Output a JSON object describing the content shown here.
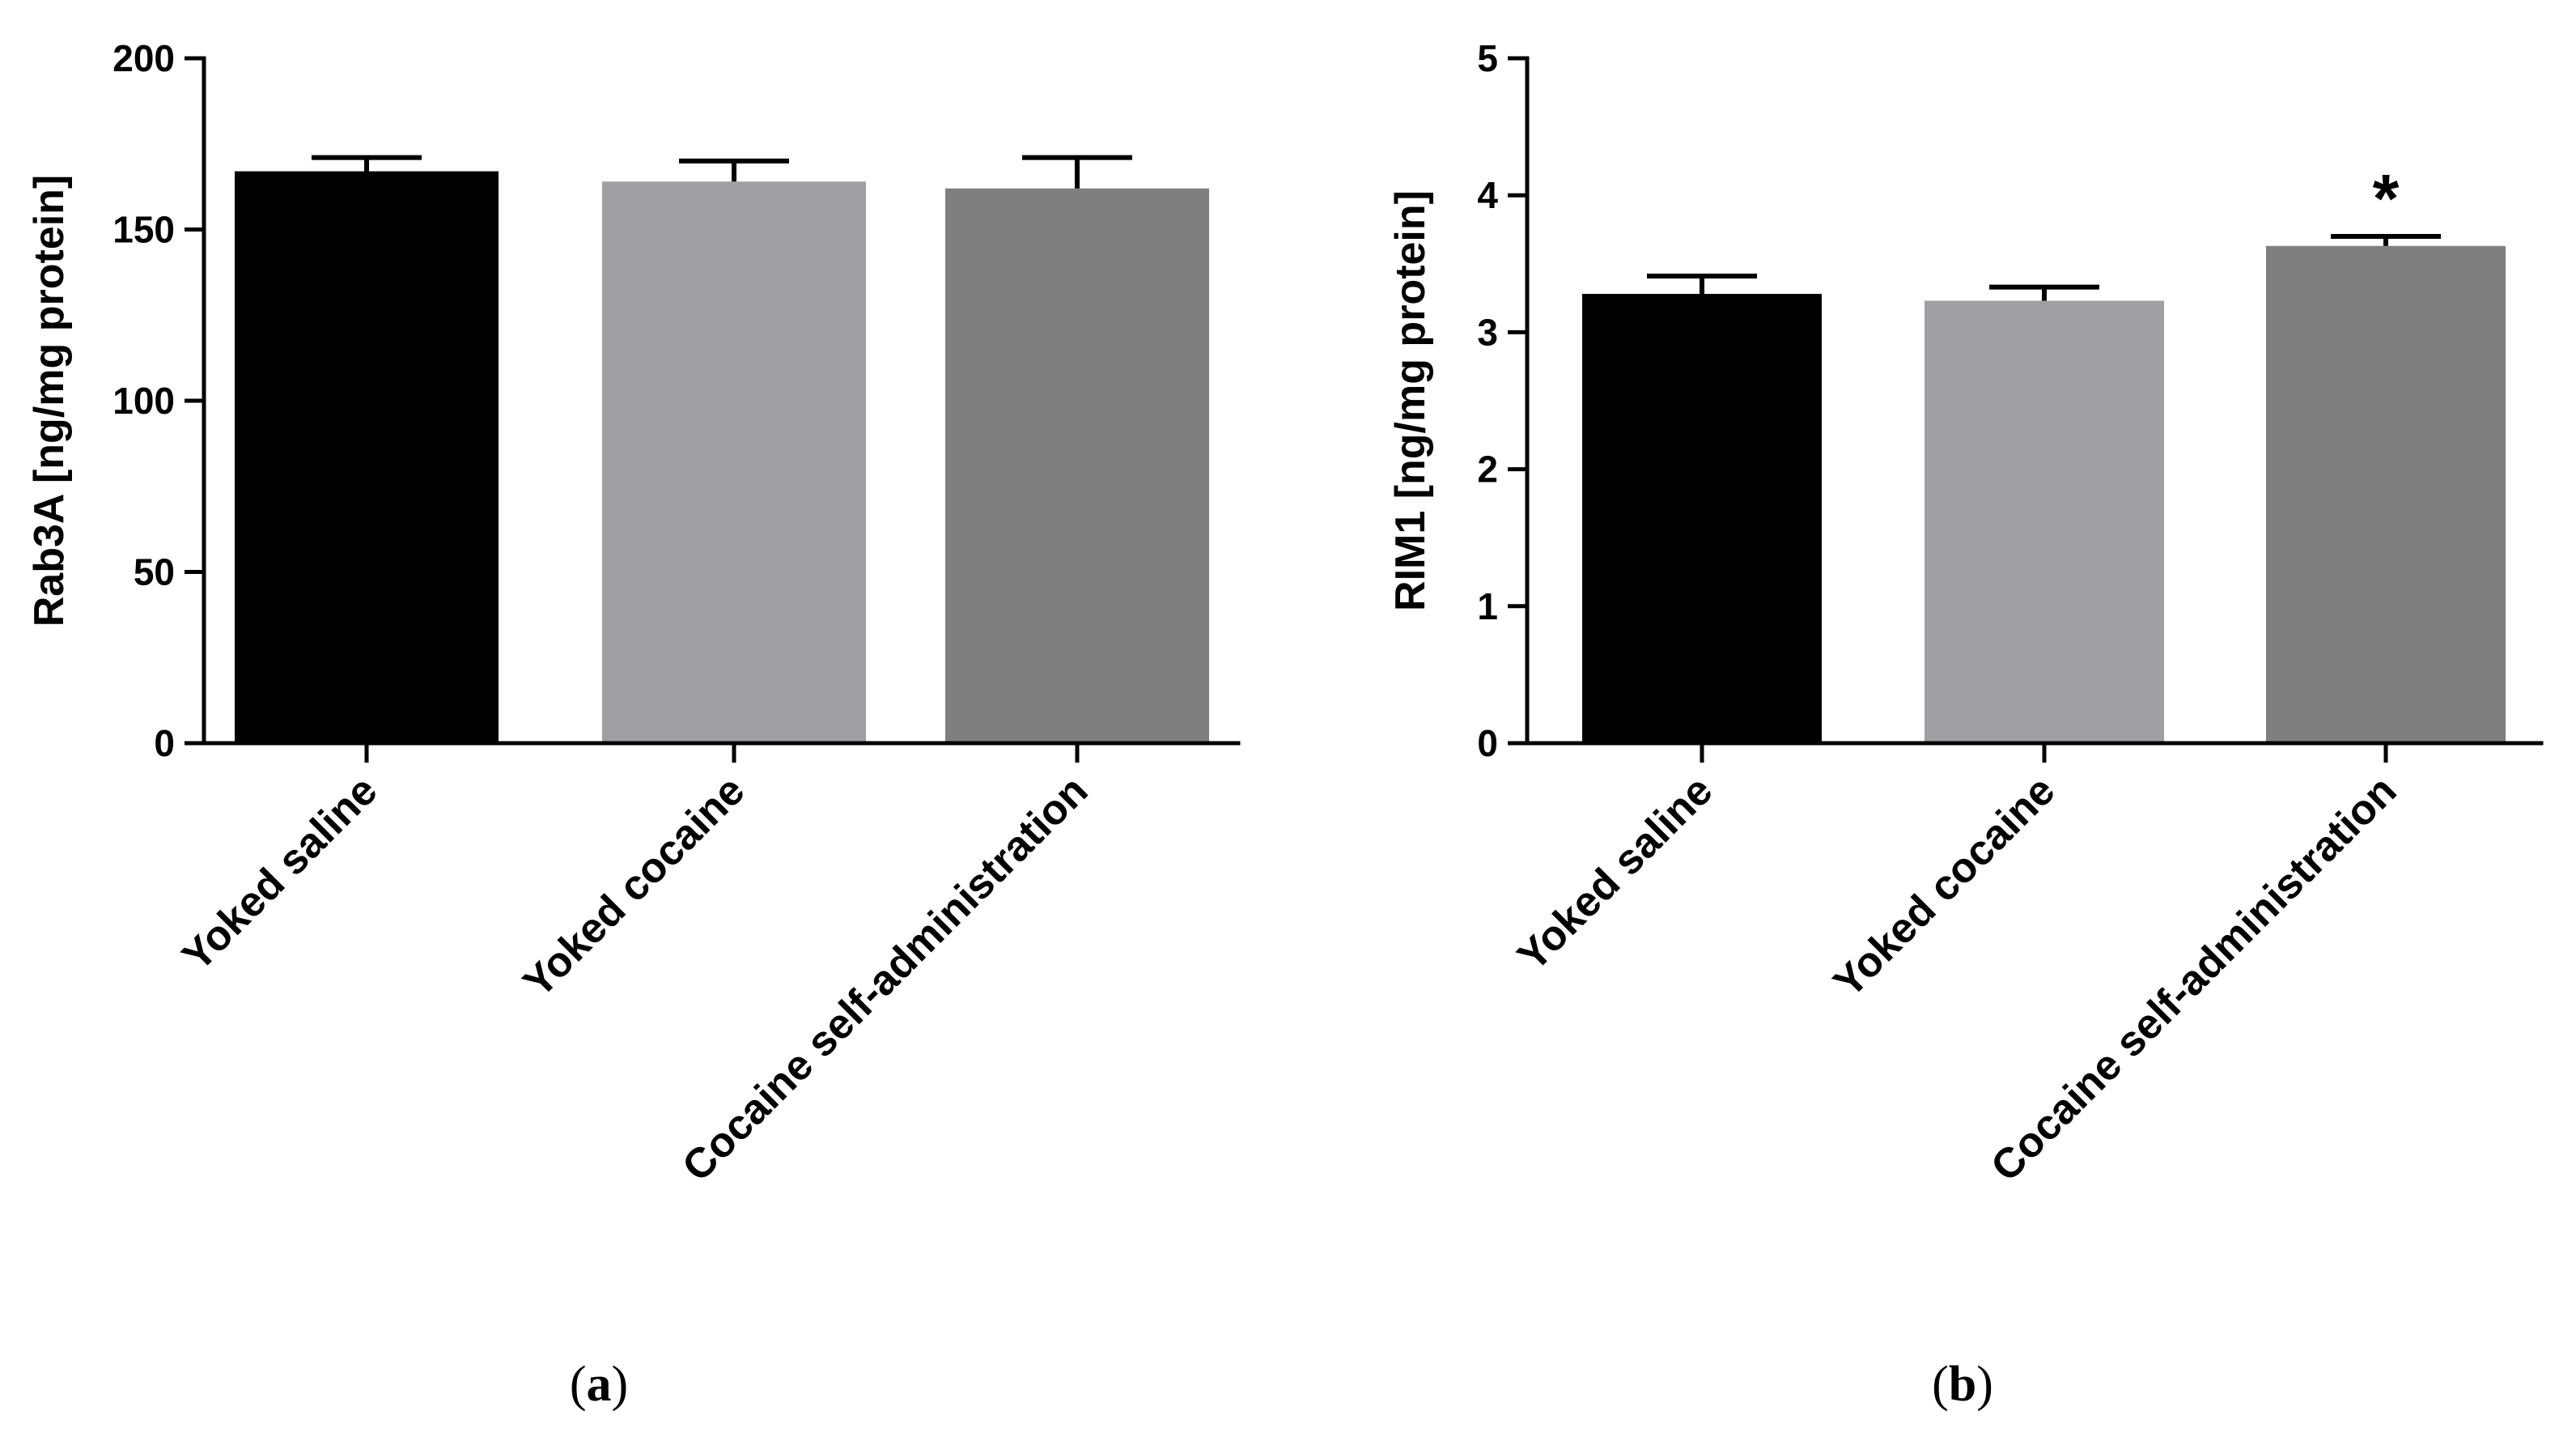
{
  "chart_data": [
    {
      "type": "bar",
      "panel": "a",
      "ylabel": "Rab3A [ng/mg protein]",
      "ylim": [
        0,
        200
      ],
      "yticks": [
        0,
        50,
        100,
        150,
        200
      ],
      "categories": [
        "Yoked saline",
        "Yoked cocaine",
        "Cocaine self-administration"
      ],
      "values": [
        167,
        164,
        162
      ],
      "errors": [
        4,
        6,
        9
      ],
      "colors": [
        "#000000",
        "#a0a0a4",
        "#7f7f7f"
      ],
      "annotations": [
        "",
        "",
        ""
      ],
      "caption": {
        "open": "(",
        "letter": "a",
        "close": ")"
      }
    },
    {
      "type": "bar",
      "panel": "b",
      "ylabel": "RIM1 [ng/mg protein]",
      "ylim": [
        0,
        5
      ],
      "yticks": [
        0,
        1,
        2,
        3,
        4,
        5
      ],
      "categories": [
        "Yoked saline",
        "Yoked cocaine",
        "Cocaine self-administration"
      ],
      "values": [
        3.28,
        3.23,
        3.63
      ],
      "errors": [
        0.13,
        0.1,
        0.07
      ],
      "colors": [
        "#000000",
        "#a0a0a4",
        "#7f7f7f"
      ],
      "annotations": [
        "",
        "",
        "*"
      ],
      "caption": {
        "open": "(",
        "letter": "b",
        "close": ")"
      }
    }
  ]
}
